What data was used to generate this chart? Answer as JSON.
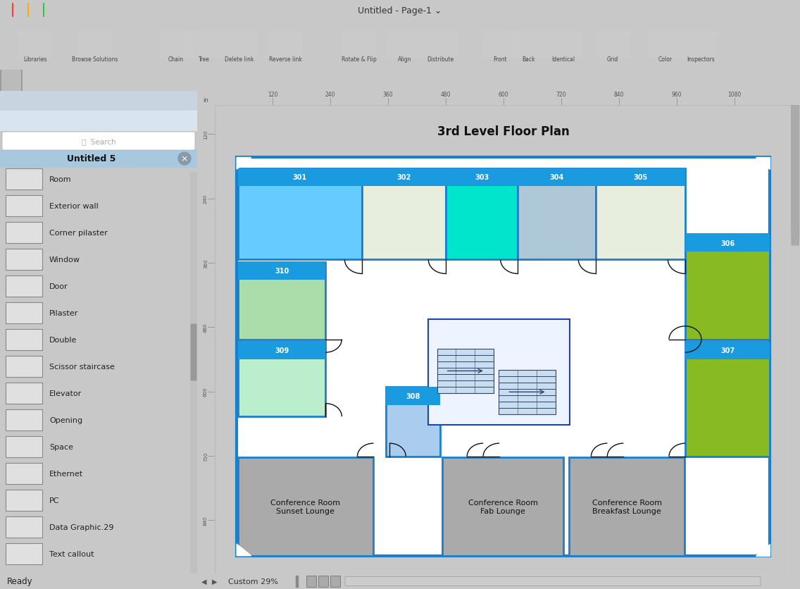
{
  "title": "3rd Level Floor Plan",
  "app_title": "Untitled - Page-1 ⌄",
  "bg_color": "#c8c8c8",
  "canvas_bg": "#ffffff",
  "sidebar_bg": "#d0dce8",
  "sidebar_title": "Untitled 5",
  "status_bar": "Ready",
  "zoom_label": "Custom 29%",
  "traffic_lights": [
    "#ff3b30",
    "#ffac0a",
    "#27c93f"
  ],
  "titlebar_bg": "#d4d4d4",
  "toolbar_bg": "#dcdcdc",
  "toolbar2_bg": "#e8e8e8",
  "ruler_bg": "#f0efee",
  "ruler_tick_color": "#555555",
  "ruler_ticks_h": [
    120,
    240,
    360,
    480,
    600,
    720,
    840,
    960,
    1080
  ],
  "ruler_ticks_v": [
    120,
    240,
    360,
    480,
    600,
    720,
    840
  ],
  "border_color": "#1a7fcc",
  "label_bg": "#1a9be0",
  "label_color": "#ffffff",
  "wall_color": "#2244aa",
  "rooms": {
    "301": {
      "fill": "#66ccff",
      "label": "301"
    },
    "302": {
      "fill": "#e8eedd",
      "label": "302"
    },
    "303": {
      "fill": "#00e5cc",
      "label": "303"
    },
    "304": {
      "fill": "#aec8d8",
      "label": "304"
    },
    "305": {
      "fill": "#e8eedd",
      "label": "305"
    },
    "306": {
      "fill": "#88bb22",
      "label": "306"
    },
    "307": {
      "fill": "#88bb22",
      "label": "307"
    },
    "308": {
      "fill": "#aaccee",
      "label": "308"
    },
    "309": {
      "fill": "#bbeecc",
      "label": "309"
    },
    "310": {
      "fill": "#aaddaa",
      "label": "310"
    }
  },
  "sidebar_items": [
    "Room",
    "Exterior wall",
    "Corner pilaster",
    "Window",
    "Door",
    "Pilaster",
    "Double",
    "Scissor staircase",
    "Elevator",
    "Opening",
    "Space",
    "Ethernet",
    "PC",
    "Data Graphic.29",
    "Text callout"
  ],
  "conf_gray": "#aaaaaa",
  "stair_fill": "#eef4ff",
  "stair_step_fill": "#7aaac8",
  "door_color": "#111111"
}
